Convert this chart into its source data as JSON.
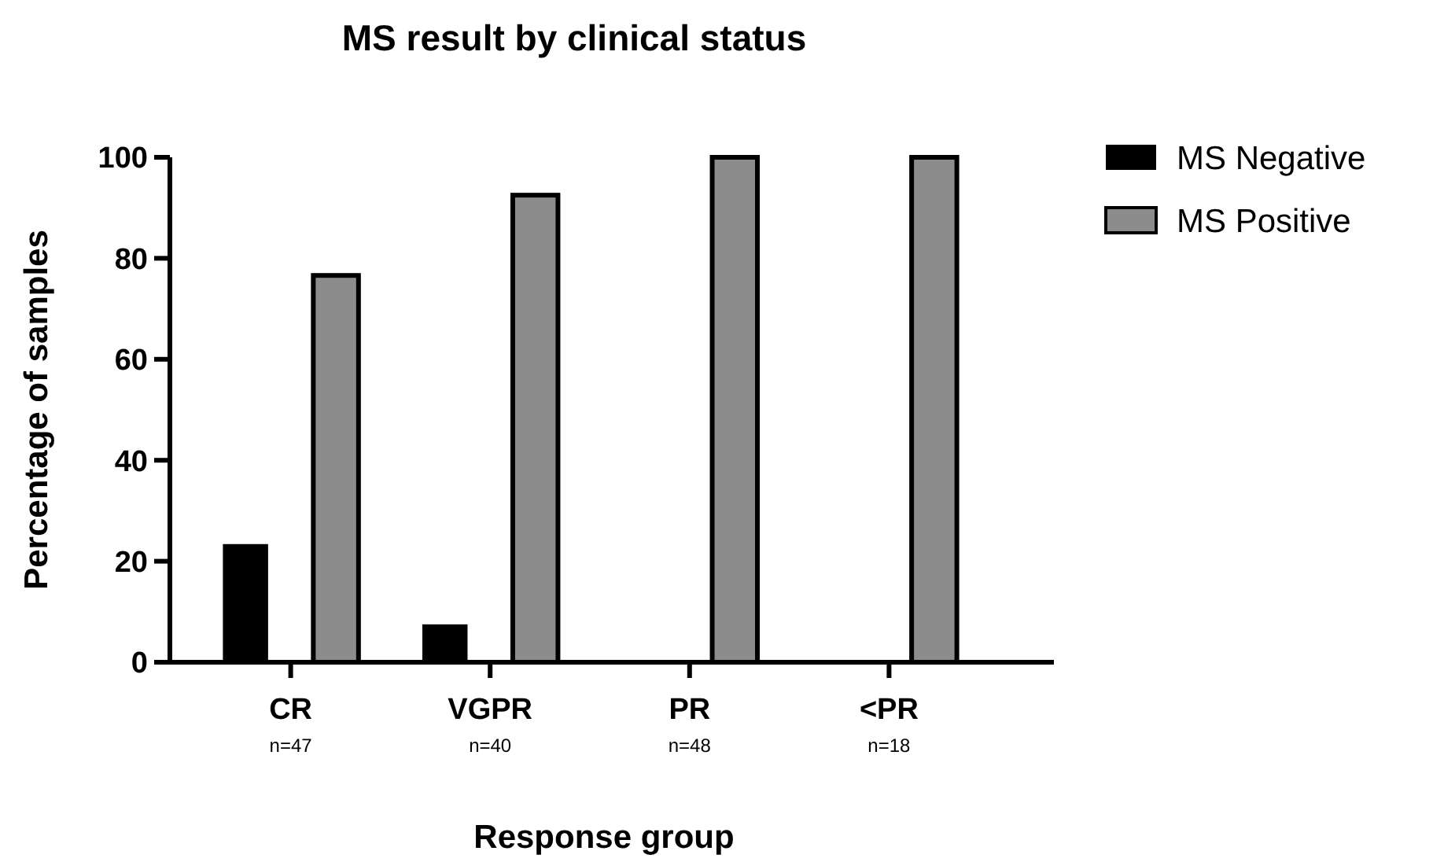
{
  "chart_data": {
    "type": "bar",
    "title": "MS result by clinical status",
    "xlabel": "Response group",
    "ylabel": "Percentage of samples",
    "categories": [
      "CR",
      "VGPR",
      "PR",
      "<PR"
    ],
    "series": [
      {
        "name": "MS Negative",
        "color": "#000000",
        "values": [
          23.4,
          7.5,
          0,
          0
        ]
      },
      {
        "name": "MS Positive",
        "color": "#8c8c8c",
        "values": [
          76.6,
          92.5,
          100,
          100
        ]
      }
    ],
    "annotations": [
      "n=47",
      "n=40",
      "n=48",
      "n=18"
    ],
    "ylim": [
      0,
      100
    ],
    "yticks": [
      0,
      20,
      40,
      60,
      80,
      100
    ],
    "grid": false,
    "legend": "right"
  }
}
